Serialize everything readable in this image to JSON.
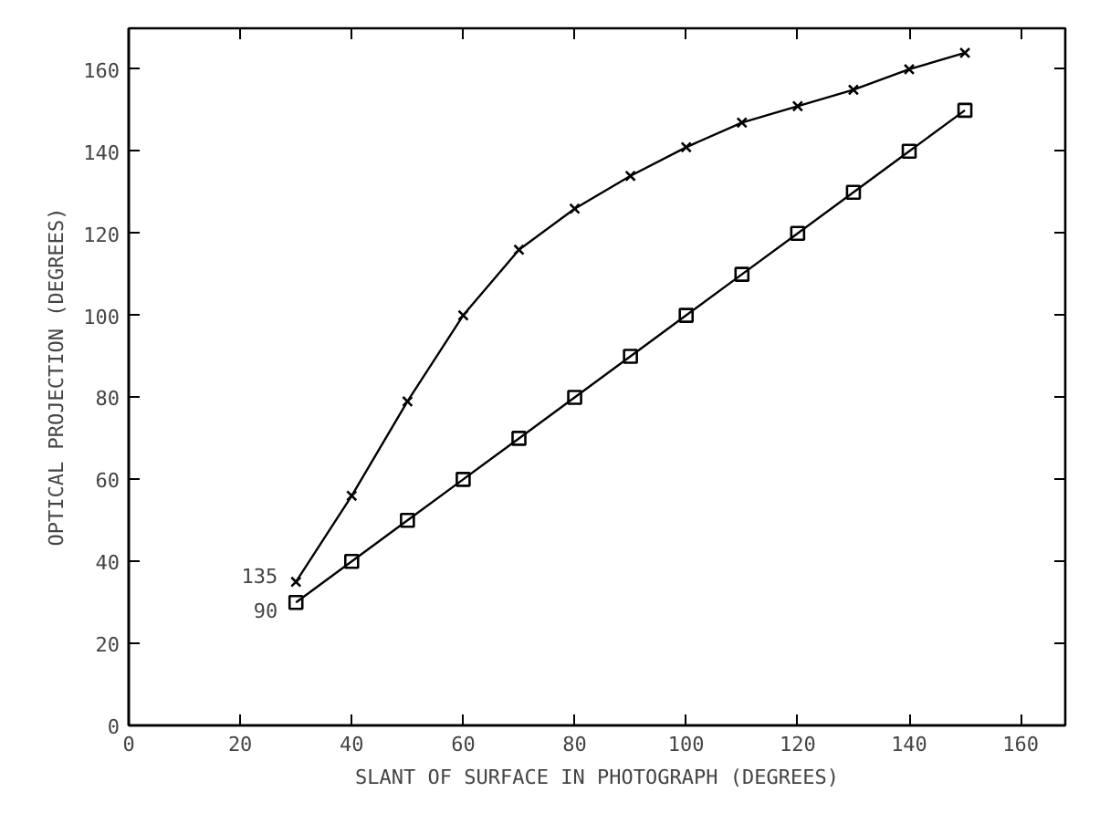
{
  "chart_data": {
    "type": "line",
    "xlabel": "SLANT OF SURFACE IN PHOTOGRAPH (DEGREES)",
    "ylabel": "OPTICAL PROJECTION (DEGREES)",
    "x": [
      30,
      40,
      50,
      60,
      70,
      80,
      90,
      100,
      110,
      120,
      130,
      140,
      150
    ],
    "series": [
      {
        "name": "135",
        "color": "#000000",
        "marker": "cross",
        "values": [
          35,
          56,
          79,
          100,
          116,
          126,
          134,
          141,
          147,
          151,
          155,
          160,
          164
        ]
      },
      {
        "name": "90",
        "color": "#000000",
        "marker": "square",
        "values": [
          30,
          40,
          50,
          60,
          70,
          80,
          90,
          100,
          110,
          120,
          130,
          140,
          150
        ]
      }
    ],
    "xlim": [
      0,
      168
    ],
    "ylim": [
      0,
      170
    ],
    "xticks": [
      0,
      20,
      40,
      60,
      80,
      100,
      120,
      140,
      160
    ],
    "yticks": [
      0,
      20,
      40,
      60,
      80,
      100,
      120,
      140,
      160
    ],
    "grid": false,
    "line_style": "solid"
  }
}
